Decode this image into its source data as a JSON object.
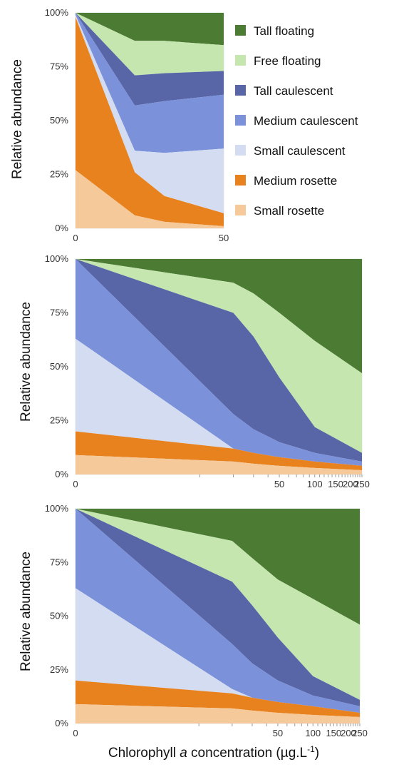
{
  "series_names": [
    "Small rosette",
    "Medium rosette",
    "Small caulescent",
    "Medium caulescent",
    "Tall caulescent",
    "Free floating",
    "Tall floating"
  ],
  "colors": {
    "Small rosette": "#f5c99a",
    "Medium rosette": "#e8821e",
    "Small caulescent": "#d3dcf0",
    "Medium caulescent": "#7b91da",
    "Tall caulescent": "#5866a8",
    "Free floating": "#c5e6ae",
    "Tall floating": "#4c7c34"
  },
  "legend_order": [
    "Tall floating",
    "Free floating",
    "Tall caulescent",
    "Medium caulescent",
    "Small caulescent",
    "Medium rosette",
    "Small rosette"
  ],
  "shared_xlabel": "Chlorophyll a concentration (µg.L⁻¹)",
  "shared_xlabel_parts": {
    "pre": "Chlorophyll ",
    "ital": "a",
    "post": " concentration (µg.L",
    "sup": "-1",
    "end": ")"
  },
  "chart_data": [
    {
      "type": "area",
      "stacked": true,
      "normalized_percent": true,
      "ylabel": "Relative abundance",
      "ylim": [
        0,
        100
      ],
      "yticks": [
        "0%",
        "25%",
        "50%",
        "75%",
        "100%"
      ],
      "xscale": "linear",
      "xlim": [
        0,
        50
      ],
      "xticks": [
        "0",
        "50"
      ],
      "x": [
        0,
        20,
        30,
        50
      ],
      "series": [
        {
          "name": "Small rosette",
          "values": [
            27,
            6,
            3,
            1
          ]
        },
        {
          "name": "Medium rosette",
          "values": [
            71,
            20,
            12,
            6
          ]
        },
        {
          "name": "Small caulescent",
          "values": [
            1,
            10,
            20,
            30
          ]
        },
        {
          "name": "Medium caulescent",
          "values": [
            1,
            21,
            24,
            25
          ]
        },
        {
          "name": "Tall caulescent",
          "values": [
            0,
            14,
            13,
            11
          ]
        },
        {
          "name": "Free floating",
          "values": [
            0,
            16,
            15,
            12
          ]
        },
        {
          "name": "Tall floating",
          "values": [
            0,
            13,
            13,
            15
          ]
        }
      ],
      "legend": "right"
    },
    {
      "type": "area",
      "stacked": true,
      "normalized_percent": true,
      "ylabel": "Relative abundance",
      "ylim": [
        0,
        100
      ],
      "yticks": [
        "0%",
        "25%",
        "50%",
        "75%",
        "100%"
      ],
      "xscale": "log1p",
      "xlim": [
        0,
        250
      ],
      "xticks": [
        "0",
        "50",
        "100",
        "150",
        "200",
        "250"
      ],
      "x": [
        0,
        20,
        30,
        50,
        100,
        250
      ],
      "series": [
        {
          "name": "Small rosette",
          "values": [
            9,
            6,
            5,
            4,
            3,
            2
          ]
        },
        {
          "name": "Medium rosette",
          "values": [
            11,
            6,
            5,
            4,
            3,
            2
          ]
        },
        {
          "name": "Small caulescent",
          "values": [
            43,
            0,
            0,
            0,
            0,
            0
          ]
        },
        {
          "name": "Medium caulescent",
          "values": [
            37,
            16,
            11,
            7,
            4,
            2
          ]
        },
        {
          "name": "Tall caulescent",
          "values": [
            0,
            47,
            43,
            30,
            12,
            4
          ]
        },
        {
          "name": "Free floating",
          "values": [
            0,
            14,
            20,
            30,
            40,
            37
          ]
        },
        {
          "name": "Tall floating",
          "values": [
            0,
            11,
            16,
            25,
            38,
            53
          ]
        }
      ]
    },
    {
      "type": "area",
      "stacked": true,
      "normalized_percent": true,
      "ylabel": "Relative abundance",
      "ylim": [
        0,
        100
      ],
      "yticks": [
        "0%",
        "25%",
        "50%",
        "75%",
        "100%"
      ],
      "xscale": "log1p",
      "xlim": [
        0,
        250
      ],
      "xticks": [
        "0",
        "50",
        "100",
        "150",
        "200",
        "250"
      ],
      "x": [
        0,
        20,
        30,
        50,
        100,
        250
      ],
      "series": [
        {
          "name": "Small rosette",
          "values": [
            9,
            7,
            6,
            5,
            4,
            3
          ]
        },
        {
          "name": "Medium rosette",
          "values": [
            11,
            7,
            6,
            5,
            4,
            2
          ]
        },
        {
          "name": "Small caulescent",
          "values": [
            43,
            2,
            0,
            0,
            0,
            0
          ]
        },
        {
          "name": "Medium caulescent",
          "values": [
            37,
            21,
            16,
            10,
            5,
            3
          ]
        },
        {
          "name": "Tall caulescent",
          "values": [
            0,
            29,
            27,
            20,
            9,
            3
          ]
        },
        {
          "name": "Free floating",
          "values": [
            0,
            19,
            22,
            27,
            36,
            35
          ]
        },
        {
          "name": "Tall floating",
          "values": [
            0,
            15,
            23,
            33,
            42,
            54
          ]
        }
      ]
    }
  ]
}
